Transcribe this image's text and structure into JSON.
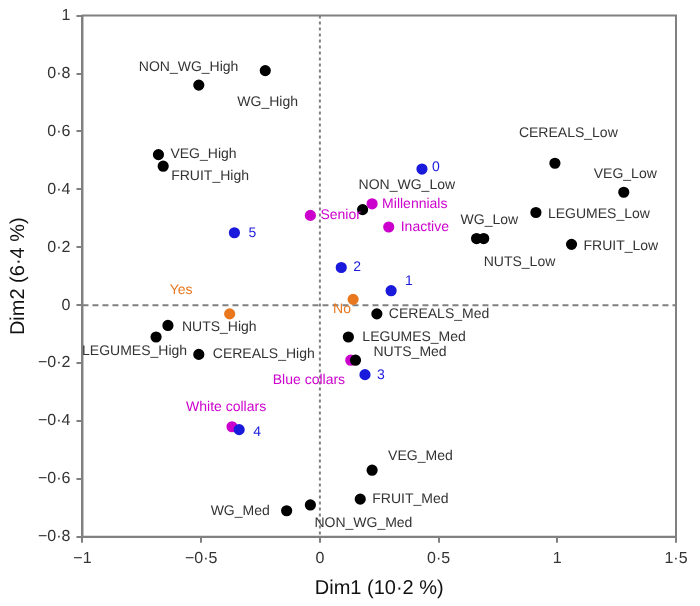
{
  "chart_data": {
    "type": "scatter",
    "xlabel": "Dim1 (10·2 %)",
    "ylabel": "Dim2 (6·4 %)",
    "xlim": [
      -1,
      1.5
    ],
    "ylim": [
      -0.8,
      1
    ],
    "xticks": [
      {
        "value": -1,
        "label": "−1"
      },
      {
        "value": -0.5,
        "label": "−0·5"
      },
      0,
      {
        "value": 0.5,
        "label": "0·5"
      },
      1,
      {
        "value": 1.5,
        "label": "1·5"
      }
    ],
    "yticks": [
      {
        "value": -0.8,
        "label": "−0·8"
      },
      {
        "value": -0.6,
        "label": "−0·6"
      },
      {
        "value": -0.4,
        "label": "−0·4"
      },
      {
        "value": -0.2,
        "label": "−0·2"
      },
      0,
      {
        "value": 0.2,
        "label": "0·2"
      },
      {
        "value": 0.4,
        "label": "0·4"
      },
      {
        "value": 0.6,
        "label": "0·6"
      },
      {
        "value": 0.8,
        "label": "0·8"
      },
      1
    ],
    "grid": false,
    "legend": false,
    "marker": "circle",
    "ref_lines": [
      {
        "axis": "x",
        "value": 0,
        "line_style": "dotted",
        "color": "#808080"
      },
      {
        "axis": "y",
        "value": 0,
        "line_style": "dashed",
        "color": "#808080"
      }
    ],
    "series": [
      {
        "name": "NON_WG_High",
        "color": "#000000",
        "x": [
          -0.51
        ],
        "values": [
          0.76
        ]
      },
      {
        "name": "WG_High",
        "color": "#000000",
        "x": [
          -0.23
        ],
        "values": [
          0.81
        ]
      },
      {
        "name": "VEG_High",
        "color": "#000000",
        "x": [
          -0.68
        ],
        "values": [
          0.52
        ]
      },
      {
        "name": "FRUIT_High",
        "color": "#000000",
        "x": [
          -0.66
        ],
        "values": [
          0.48
        ]
      },
      {
        "name": "NON_WG_Low",
        "color": "#000000",
        "x": [
          0.18
        ],
        "values": [
          0.33
        ]
      },
      {
        "name": "CEREALS_Low",
        "color": "#000000",
        "x": [
          0.99
        ],
        "values": [
          0.49
        ]
      },
      {
        "name": "VEG_Low",
        "color": "#000000",
        "x": [
          1.28
        ],
        "values": [
          0.39
        ]
      },
      {
        "name": "LEGUMES_Low",
        "color": "#000000",
        "x": [
          0.91
        ],
        "values": [
          0.32
        ]
      },
      {
        "name": "WG_Low",
        "color": "#000000",
        "x": [
          0.66
        ],
        "values": [
          0.23
        ]
      },
      {
        "name": "NUTS_Low",
        "color": "#000000",
        "x": [
          0.69
        ],
        "values": [
          0.23
        ]
      },
      {
        "name": "FRUIT_Low",
        "color": "#000000",
        "x": [
          1.06
        ],
        "values": [
          0.21
        ]
      },
      {
        "name": "NUTS_High",
        "color": "#000000",
        "x": [
          -0.64
        ],
        "values": [
          -0.07
        ]
      },
      {
        "name": "LEGUMES_High",
        "color": "#000000",
        "x": [
          -0.69
        ],
        "values": [
          -0.11
        ]
      },
      {
        "name": "CEREALS_High",
        "color": "#000000",
        "x": [
          -0.51
        ],
        "values": [
          -0.17
        ]
      },
      {
        "name": "WG_Med",
        "color": "#000000",
        "x": [
          -0.14
        ],
        "values": [
          -0.71
        ]
      },
      {
        "name": "NON_WG_Med",
        "color": "#000000",
        "x": [
          -0.04
        ],
        "values": [
          -0.69
        ]
      },
      {
        "name": "CEREALS_Med",
        "color": "#000000",
        "x": [
          0.24
        ],
        "values": [
          -0.03
        ]
      },
      {
        "name": "LEGUMES_Med",
        "color": "#000000",
        "x": [
          0.12
        ],
        "values": [
          -0.11
        ]
      },
      {
        "name": "NUTS_Med",
        "color": "#000000",
        "x": [
          0.15
        ],
        "values": [
          -0.19
        ]
      },
      {
        "name": "VEG_Med",
        "color": "#000000",
        "x": [
          0.22
        ],
        "values": [
          -0.57
        ]
      },
      {
        "name": "FRUIT_Med",
        "color": "#000000",
        "x": [
          0.17
        ],
        "values": [
          -0.67
        ]
      },
      {
        "name": "0",
        "color": "#1a1adc",
        "x": [
          0.43
        ],
        "values": [
          0.47
        ]
      },
      {
        "name": "1",
        "color": "#1a1adc",
        "x": [
          0.3
        ],
        "values": [
          0.05
        ]
      },
      {
        "name": "2",
        "color": "#1a1adc",
        "x": [
          0.09
        ],
        "values": [
          0.13
        ]
      },
      {
        "name": "3",
        "color": "#1a1adc",
        "x": [
          0.19
        ],
        "values": [
          -0.24
        ]
      },
      {
        "name": "4",
        "color": "#1a1adc",
        "x": [
          -0.34
        ],
        "values": [
          -0.43
        ]
      },
      {
        "name": "5",
        "color": "#1a1adc",
        "x": [
          -0.36
        ],
        "values": [
          0.25
        ]
      },
      {
        "name": "Senior",
        "color": "#cc00cc",
        "x": [
          -0.04
        ],
        "values": [
          0.31
        ]
      },
      {
        "name": "Millennials",
        "color": "#cc00cc",
        "x": [
          0.22
        ],
        "values": [
          0.35
        ]
      },
      {
        "name": "Inactive",
        "color": "#cc00cc",
        "x": [
          0.29
        ],
        "values": [
          0.27
        ]
      },
      {
        "name": "Blue collars",
        "color": "#cc00cc",
        "x": [
          0.13
        ],
        "values": [
          -0.19
        ]
      },
      {
        "name": "White collars",
        "color": "#cc00cc",
        "x": [
          -0.37
        ],
        "values": [
          -0.42
        ]
      },
      {
        "name": "Yes",
        "color": "#e8771e",
        "x": [
          -0.38
        ],
        "values": [
          -0.03
        ]
      },
      {
        "name": "No",
        "color": "#e8771e",
        "x": [
          0.14
        ],
        "values": [
          0.02
        ]
      }
    ]
  }
}
